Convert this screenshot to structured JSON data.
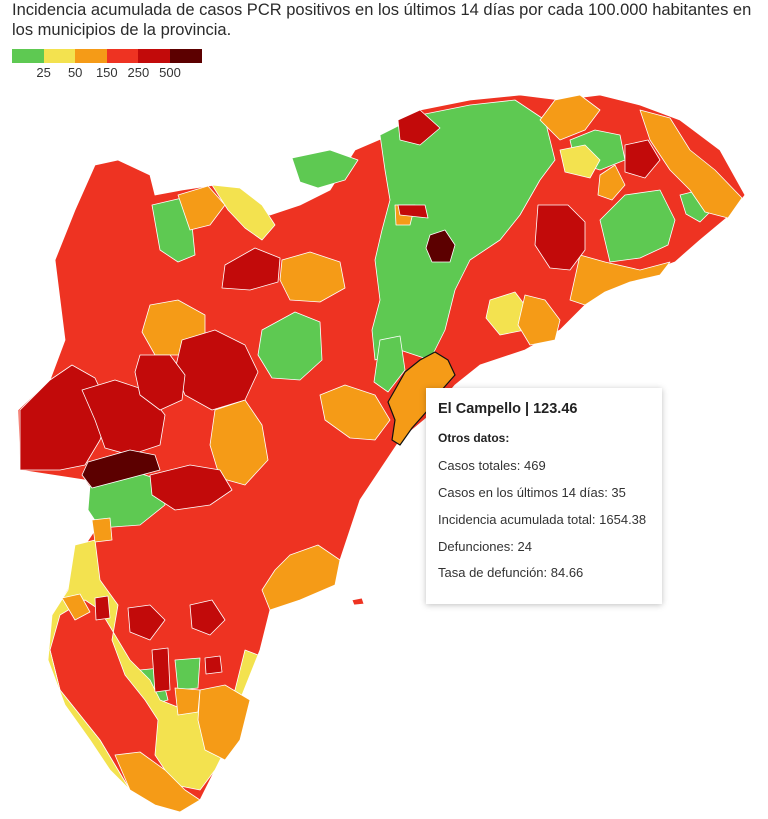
{
  "title": "Incidencia acumulada de casos PCR positivos en los últimos 14 días por cada 100.000 habitantes en los municipios de la provincia.",
  "legend": {
    "colors": [
      "#5ec952",
      "#f3e24f",
      "#f59b17",
      "#ee3322",
      "#c20a0a",
      "#5c0000"
    ],
    "labels": [
      "25",
      "50",
      "150",
      "250",
      "500"
    ]
  },
  "tooltip": {
    "title": "El Campello | 123.46",
    "subtitle": "Otros datos:",
    "rows": [
      "Casos totales: 469",
      "Casos en los últimos 14 días: 35",
      "Incidencia acumulada total: 1654.38",
      "Defunciones: 24",
      "Tasa de defunción: 84.66"
    ]
  },
  "colors": {
    "green": "#5ec952",
    "yellow": "#f3e24f",
    "orange": "#f59b17",
    "red": "#ee3322",
    "darkred": "#c20a0a",
    "maroon": "#5c0000"
  }
}
